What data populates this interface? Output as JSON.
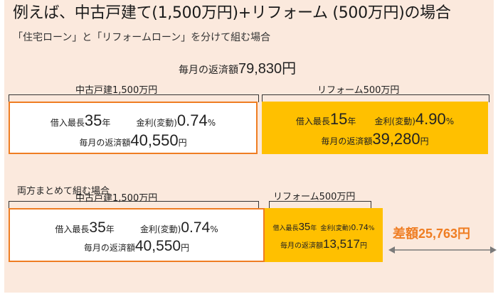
{
  "title": "例えば、中古戸建て(1,500万円)+リフォーム (500万円)の場合",
  "subtitle": "「住宅ローン」と「リフォームローン」を分けて組む場合",
  "separate": {
    "total_label": "毎月の返済額",
    "total_value": "79,830円",
    "house": {
      "heading": "中古戸建1,500万円",
      "term_label": "借入最長",
      "term_value": "35",
      "term_unit": "年",
      "rate_label": "金利(変動)",
      "rate_value": "0.74",
      "rate_unit": "%",
      "payment_label": "毎月の返済額",
      "payment_value": "40,550",
      "payment_unit": "円"
    },
    "reform": {
      "heading": "リフォーム500万円",
      "term_label": "借入最長",
      "term_value": "15",
      "term_unit": "年",
      "rate_label": "金利(変動)",
      "rate_value": "4.90",
      "rate_unit": "%",
      "payment_label": "毎月の返済額",
      "payment_value": "39,280",
      "payment_unit": "円"
    }
  },
  "combined": {
    "heading": "両方まとめて組む場合",
    "house": {
      "heading": "中古戸建1,500万円",
      "term_label": "借入最長",
      "term_value": "35",
      "term_unit": "年",
      "rate_label": "金利(変動)",
      "rate_value": "0.74",
      "rate_unit": "%",
      "payment_label": "毎月の返済額",
      "payment_value": "40,550",
      "payment_unit": "円"
    },
    "reform": {
      "heading": "リフォーム500万円",
      "term_label": "借入最長",
      "term_value": "35",
      "term_unit": "年",
      "rate_label": "金利(変動)",
      "rate_value": "0.74",
      "rate_unit": "%",
      "payment_label": "毎月の返済額",
      "payment_value": "13,517",
      "payment_unit": "円"
    },
    "difference": "差額25,763円"
  },
  "colors": {
    "accent": "#ef7d22",
    "highlight": "#ffc000",
    "background": "#fbe9dd"
  }
}
